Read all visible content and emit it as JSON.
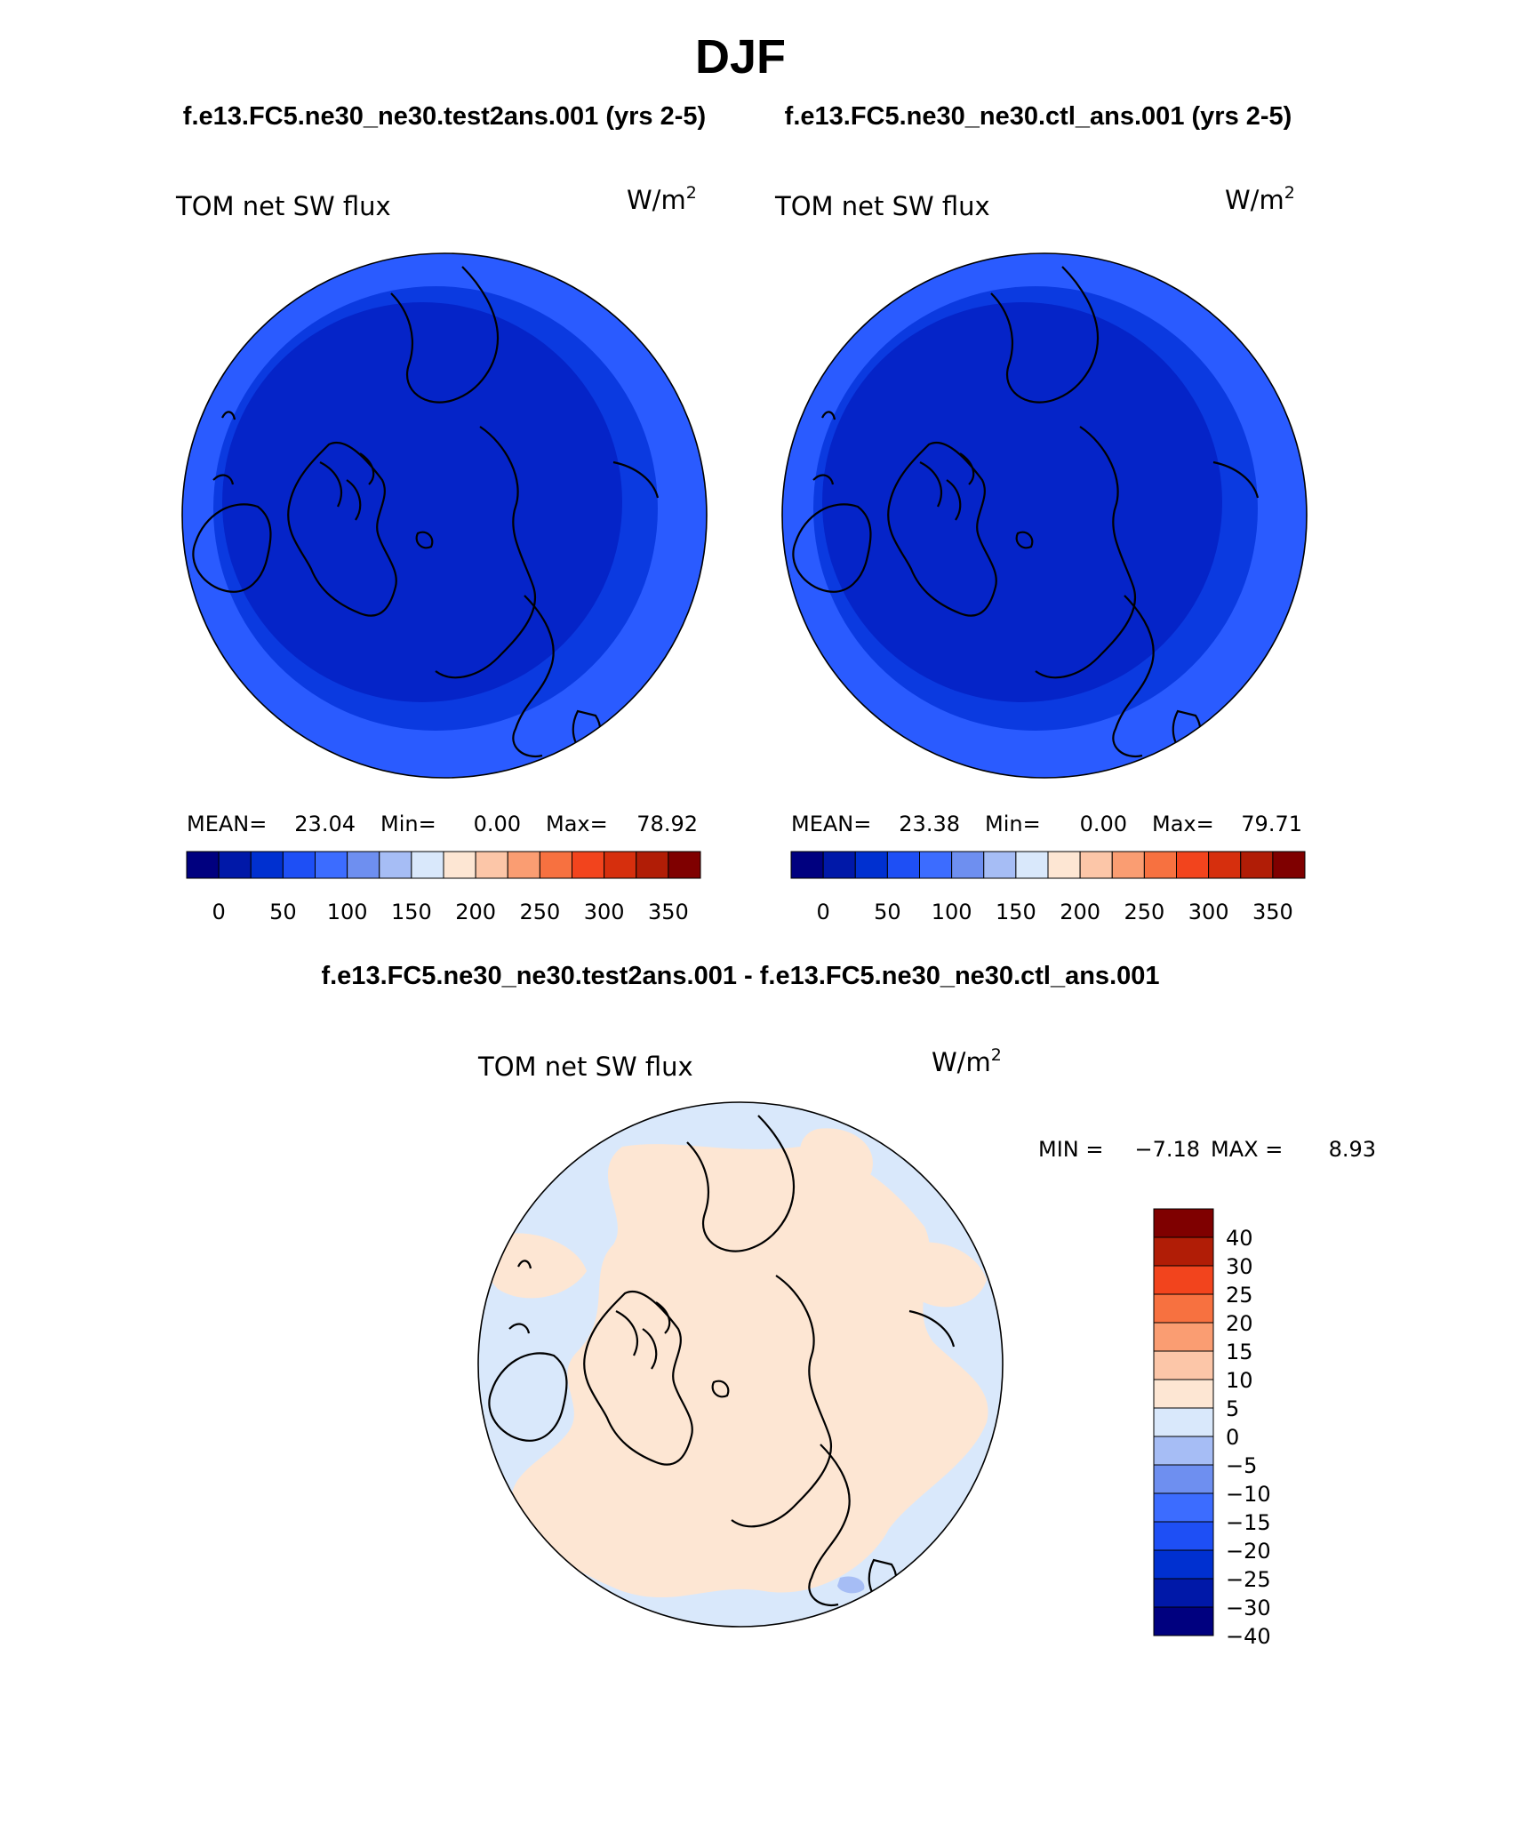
{
  "figure": {
    "title": "DJF",
    "subtitle_left": "f.e13.FC5.ne30_ne30.test2ans.001 (yrs 2-5)",
    "subtitle_right": "f.e13.FC5.ne30_ne30.ctl_ans.001 (yrs 2-5)",
    "diff_title": "f.e13.FC5.ne30_ne30.test2ans.001 - f.e13.FC5.ne30_ne30.ctl_ans.001"
  },
  "colors": {
    "abs_scale": [
      "#00007f",
      "#0018a8",
      "#0030d0",
      "#1e4ff5",
      "#3c6cff",
      "#6e8ff0",
      "#a6bdf5",
      "#d9e8fb",
      "#fde6d3",
      "#fcc6a8",
      "#fa9d72",
      "#f77140",
      "#f2441d",
      "#d62f0d",
      "#b11d06",
      "#7f0000"
    ],
    "diff_scale": [
      "#00007f",
      "#0018a8",
      "#0030d0",
      "#1e4ff5",
      "#3c6cff",
      "#6e8ff0",
      "#a6bdf5",
      "#d9e8fb",
      "#fde6d3",
      "#fcc6a8",
      "#fa9d72",
      "#f77140",
      "#f2441d",
      "#b11d06",
      "#7f0000"
    ],
    "land_outline": "#000000"
  },
  "panels": [
    {
      "field": "TOM net SW flux",
      "units_base": "W/m",
      "units_exp": "2",
      "mean_label": "MEAN=",
      "mean_value": "23.04",
      "min_label": "Min=",
      "min_value": "0.00",
      "max_label": "Max=",
      "max_value": "78.92",
      "bands": [
        {
          "level": 0.3,
          "color": "#2a5bff"
        },
        {
          "level": 0.15,
          "color": "#0b3ae0"
        },
        {
          "level": 0.0,
          "color": "#0524c8"
        }
      ]
    },
    {
      "field": "TOM net SW flux",
      "units_base": "W/m",
      "units_exp": "2",
      "mean_label": "MEAN=",
      "mean_value": "23.38",
      "min_label": "Min=",
      "min_value": "0.00",
      "max_label": "Max=",
      "max_value": "79.71",
      "bands": [
        {
          "level": 0.3,
          "color": "#2a5bff"
        },
        {
          "level": 0.15,
          "color": "#0b3ae0"
        },
        {
          "level": 0.0,
          "color": "#0524c8"
        }
      ]
    },
    {
      "field": "TOM net SW flux",
      "units_base": "W/m",
      "units_exp": "2",
      "min_label": "MIN =",
      "min_value": "−7.18",
      "max_label": "MAX =",
      "max_value": "8.93"
    }
  ],
  "abs_colorbar_labels": [
    "0",
    "50",
    "100",
    "150",
    "200",
    "250",
    "300",
    "350"
  ],
  "diff_colorbar_labels": [
    "40",
    "30",
    "25",
    "20",
    "15",
    "10",
    "5",
    "0",
    "−5",
    "−10",
    "−15",
    "−20",
    "−25",
    "−30",
    "−40"
  ],
  "diff_field": {
    "background": "#d9e8fb",
    "positive": "#fde6d3",
    "accent": "#a6bdf5"
  }
}
